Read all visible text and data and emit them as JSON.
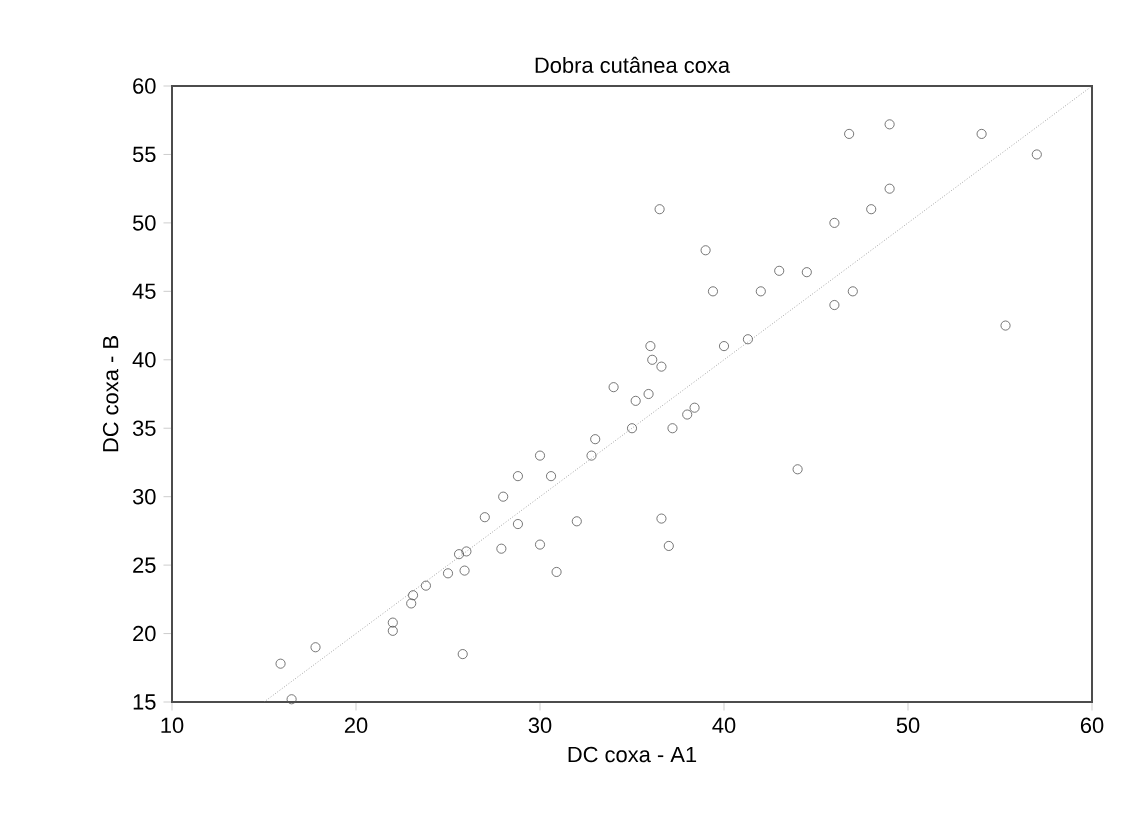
{
  "chart_data": {
    "type": "scatter",
    "title": "Dobra cutânea coxa",
    "xlabel": "DC coxa - A1",
    "ylabel": "DC coxa - B",
    "xlim": [
      10,
      60
    ],
    "ylim": [
      15,
      60
    ],
    "xticks": [
      10,
      20,
      30,
      40,
      50,
      60
    ],
    "yticks": [
      15,
      20,
      25,
      30,
      35,
      40,
      45,
      50,
      55,
      60
    ],
    "marker": "circle",
    "grid": false,
    "series": [
      {
        "color": "#555555",
        "x": [
          15.9,
          16.5,
          17.8,
          22,
          22,
          23,
          23.1,
          23.8,
          25,
          25.6,
          26,
          25.9,
          25.8,
          27,
          27.9,
          28,
          28.8,
          28.8,
          30,
          30,
          30.6,
          30.9,
          32,
          32.8,
          33,
          34,
          35,
          35.2,
          35.9,
          36,
          36.1,
          36.6,
          36.5,
          36.6,
          37,
          37.2,
          38,
          38.4,
          39,
          39.4,
          40,
          41.3,
          42,
          43,
          44,
          44.5,
          46,
          46,
          46.8,
          47,
          48,
          49,
          49,
          54,
          55.3,
          57
        ],
        "values": [
          17.8,
          15.2,
          19,
          20.2,
          20.8,
          22.2,
          22.8,
          23.5,
          24.4,
          25.8,
          26,
          24.6,
          18.5,
          28.5,
          26.2,
          30,
          31.5,
          28,
          33,
          26.5,
          31.5,
          24.5,
          28.2,
          33,
          34.2,
          38,
          35,
          37,
          37.5,
          41,
          40,
          39.5,
          51,
          28.4,
          26.4,
          35,
          36,
          36.5,
          48,
          45,
          41,
          41.5,
          45,
          46.5,
          32,
          46.4,
          50,
          44,
          56.5,
          45,
          51,
          57.2,
          52.5,
          56.5,
          42.5,
          55
        ]
      },
      {
        "type": "line",
        "line_style": "dotted",
        "marker": "none",
        "color": "#777777",
        "x": [
          15,
          60
        ],
        "values": [
          15,
          60
        ]
      }
    ]
  }
}
